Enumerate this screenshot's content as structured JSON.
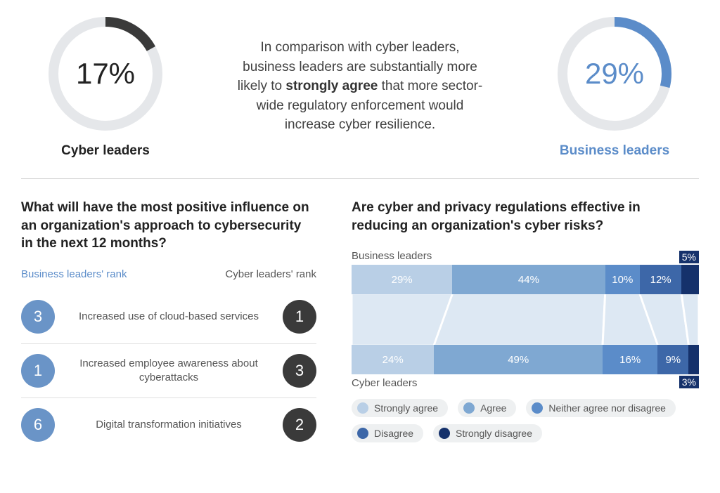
{
  "colors": {
    "donut_track": "#e5e7ea",
    "cyber_accent": "#3a3a3a",
    "business_accent": "#5b8cc9",
    "text": "#333333"
  },
  "top": {
    "cyber": {
      "percent": 17,
      "display": "17%",
      "ring_color": "#3a3a3a",
      "track_color": "#e5e7ea",
      "label": "Cyber leaders",
      "label_color": "#222222",
      "pct_color": "#222222"
    },
    "business": {
      "percent": 29,
      "display": "29%",
      "ring_color": "#5b8cc9",
      "track_color": "#e5e7ea",
      "label": "Business leaders",
      "label_color": "#5b8cc9",
      "pct_color": "#5b8cc9"
    },
    "text_pre": "In comparison with cyber leaders, business leaders are substantially more likely to ",
    "text_bold": "strongly agree",
    "text_post": " that more sector-wide regulatory enforcement would increase cyber resilience."
  },
  "ranking": {
    "title": "What will have the most positive influence on an organization's approach to cybersecurity in the next 12 months?",
    "header_business": "Business leaders' rank",
    "header_cyber": "Cyber leaders' rank",
    "business_color": "#6a94c7",
    "cyber_color": "#3a3a3a",
    "rows": [
      {
        "business_rank": "3",
        "cyber_rank": "1",
        "label": "Increased use of cloud-based services"
      },
      {
        "business_rank": "1",
        "cyber_rank": "3",
        "label": "Increased employee awareness about cyberattacks"
      },
      {
        "business_rank": "6",
        "cyber_rank": "2",
        "label": "Digital transformation initiatives"
      }
    ]
  },
  "stacked": {
    "title": "Are cyber and privacy regulations effective in reducing an organization's cyber risks?",
    "label_business": "Business leaders",
    "label_cyber": "Cyber leaders",
    "categories": [
      "Strongly agree",
      "Agree",
      "Neither agree nor disagree",
      "Disagree",
      "Strongly disagree"
    ],
    "seg_colors": [
      "#b9cfe6",
      "#7fa8d2",
      "#5b8cc9",
      "#3d67a8",
      "#15316b"
    ],
    "funnel_color": "#dde8f3",
    "business": {
      "values": [
        29,
        44,
        10,
        12,
        5
      ],
      "labels": [
        "29%",
        "44%",
        "10%",
        "12%",
        "5%"
      ],
      "outside_last": true
    },
    "cyber": {
      "values": [
        24,
        49,
        16,
        9,
        3
      ],
      "labels": [
        "24%",
        "49%",
        "16%",
        "9%",
        "3%"
      ],
      "outside_last": true
    }
  }
}
